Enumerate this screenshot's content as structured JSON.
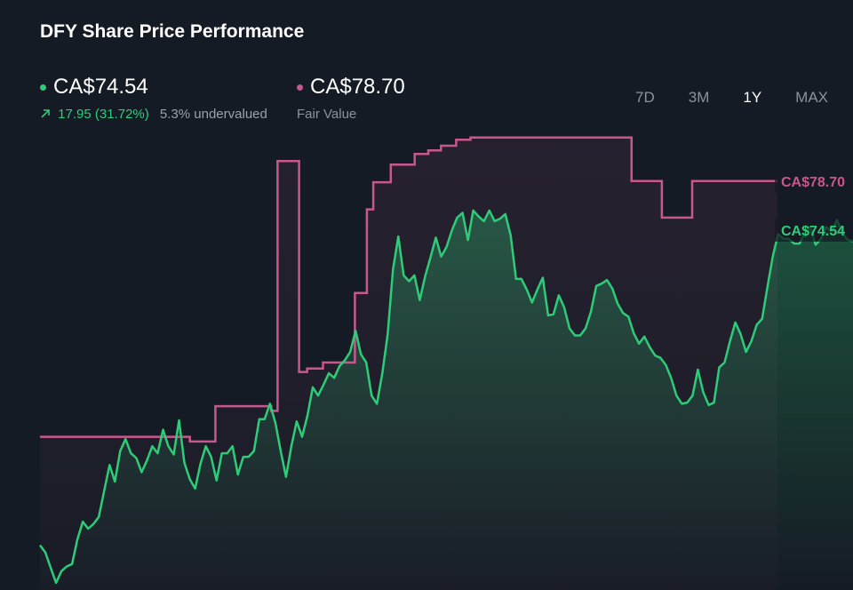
{
  "title": "DFY Share Price Performance",
  "current_price": {
    "value": "CA$74.54",
    "change": "17.95 (31.72%)",
    "valuation": "5.3% undervalued",
    "color": "#2ecc79"
  },
  "fair_value": {
    "value": "CA$78.70",
    "label": "Fair Value",
    "color": "#c9578f"
  },
  "tabs": [
    {
      "label": "7D",
      "active": false
    },
    {
      "label": "3M",
      "active": false
    },
    {
      "label": "1Y",
      "active": true
    },
    {
      "label": "MAX",
      "active": false
    }
  ],
  "chart_data": {
    "type": "line",
    "ylim": [
      44,
      82
    ],
    "grid": false,
    "series": [
      {
        "name": "Share Price",
        "color": "#2ecc79",
        "end_label": "CA$74.54",
        "values": [
          47.8,
          47.2,
          45.9,
          44.6,
          45.6,
          46.0,
          46.2,
          48.3,
          49.8,
          49.2,
          49.6,
          50.2,
          52.4,
          54.6,
          53.2,
          55.8,
          56.8,
          55.6,
          55.2,
          54.0,
          55.0,
          56.2,
          55.6,
          57.6,
          56.2,
          55.5,
          58.4,
          54.8,
          53.4,
          52.6,
          54.7,
          56.2,
          55.3,
          53.3,
          55.6,
          55.6,
          56.2,
          53.8,
          55.3,
          55.3,
          55.8,
          58.5,
          58.5,
          59.8,
          58.2,
          55.8,
          53.6,
          56.2,
          58.3,
          57.0,
          58.8,
          61.2,
          60.5,
          61.4,
          62.4,
          62.0,
          63.0,
          63.5,
          64.2,
          66.0,
          64.0,
          63.3,
          60.5,
          59.8,
          62.4,
          65.7,
          71.2,
          74.0,
          70.7,
          70.2,
          70.7,
          68.6,
          70.6,
          72.2,
          73.9,
          72.3,
          73.1,
          74.5,
          75.6,
          76.0,
          73.7,
          76.2,
          75.7,
          75.3,
          76.2,
          75.3,
          75.5,
          75.9,
          74.1,
          70.4,
          70.4,
          69.5,
          68.4,
          69.5,
          70.5,
          67.3,
          67.4,
          69.0,
          68.0,
          66.2,
          65.6,
          65.6,
          66.2,
          67.6,
          69.8,
          70.0,
          70.3,
          69.6,
          68.3,
          67.5,
          67.2,
          65.8,
          64.9,
          65.5,
          64.6,
          63.9,
          63.7,
          63.1,
          62.0,
          60.5,
          59.8,
          59.9,
          60.5,
          62.7,
          60.8,
          59.7,
          59.9,
          62.9,
          63.3,
          65.1,
          66.7,
          65.7,
          64.2,
          65.1,
          66.5,
          67.0,
          69.7,
          72.3,
          74.2,
          73.8,
          73.8,
          73.4,
          73.4,
          74.3,
          74.8,
          73.3,
          73.8,
          74.8,
          74.4,
          75.4,
          74.3,
          73.7,
          73.6
        ],
        "x_step": 6
      },
      {
        "name": "Fair Value",
        "color": "#c9578f",
        "end_label": "CA$78.70",
        "step_points": [
          [
            0,
            57.0
          ],
          [
            188,
            57.0
          ],
          [
            188,
            56.6
          ],
          [
            220,
            56.6
          ],
          [
            220,
            59.6
          ],
          [
            290,
            59.6
          ],
          [
            290,
            59.2
          ],
          [
            298,
            59.2
          ],
          [
            298,
            80.4
          ],
          [
            325,
            80.4
          ],
          [
            325,
            62.5
          ],
          [
            335,
            62.5
          ],
          [
            335,
            62.8
          ],
          [
            355,
            62.8
          ],
          [
            355,
            63.3
          ],
          [
            395,
            63.3
          ],
          [
            395,
            69.2
          ],
          [
            410,
            69.2
          ],
          [
            410,
            76.3
          ],
          [
            418,
            76.3
          ],
          [
            418,
            78.6
          ],
          [
            440,
            78.6
          ],
          [
            440,
            80.1
          ],
          [
            470,
            80.1
          ],
          [
            470,
            81.0
          ],
          [
            487,
            81.0
          ],
          [
            487,
            81.3
          ],
          [
            503,
            81.3
          ],
          [
            503,
            81.7
          ],
          [
            522,
            81.7
          ],
          [
            522,
            82.2
          ],
          [
            540,
            82.2
          ],
          [
            540,
            82.4
          ],
          [
            742,
            82.4
          ],
          [
            742,
            78.7
          ],
          [
            780,
            78.7
          ],
          [
            780,
            75.6
          ],
          [
            818,
            75.6
          ],
          [
            818,
            78.7
          ],
          [
            925,
            78.7
          ]
        ]
      }
    ]
  }
}
